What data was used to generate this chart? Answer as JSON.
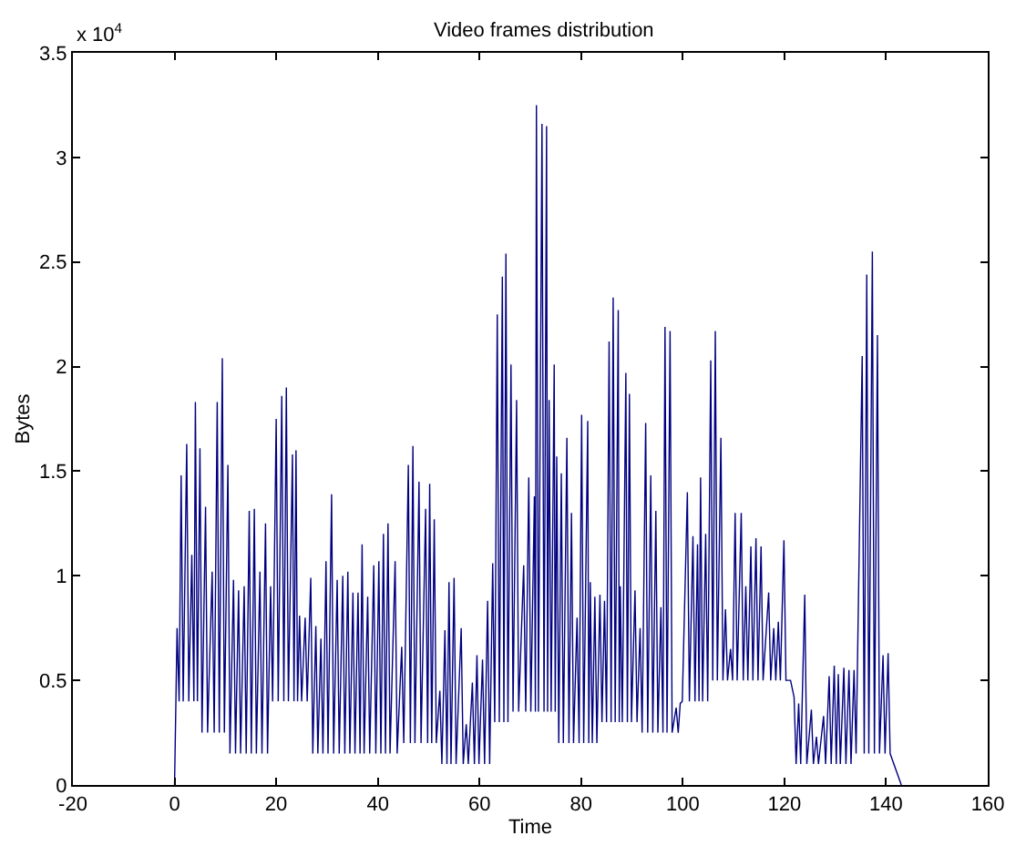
{
  "chart_data": {
    "type": "line",
    "title": "Video frames distribution",
    "xlabel": "Time",
    "ylabel": "Bytes",
    "annotations": [
      "x 10$^{4}$"
    ],
    "color": "#000080",
    "marker": "none",
    "line_style": "solid",
    "xlim": [
      -20,
      160
    ],
    "xticks": [
      -20,
      0,
      20,
      40,
      60,
      80,
      100,
      120,
      140,
      160
    ],
    "ylim": [
      0,
      3.5
    ],
    "yticks": [
      0,
      0.5,
      1,
      1.5,
      2,
      2.5,
      3,
      3.5
    ],
    "x": [
      0,
      0.5,
      0.9,
      1.3,
      1.7,
      2.4,
      2.8,
      3.4,
      3.8,
      4.1,
      4.5,
      5.0,
      5.4,
      6.1,
      6.5,
      7.4,
      7.8,
      8.4,
      8.8,
      9.4,
      9.8,
      10.5,
      10.9,
      11.6,
      12.0,
      12.6,
      13.0,
      13.7,
      14.1,
      14.7,
      15.1,
      15.7,
      16.1,
      16.8,
      17.2,
      17.9,
      18.3,
      18.9,
      19.3,
      20.0,
      20.4,
      21.1,
      21.5,
      22.0,
      22.4,
      23.2,
      23.5,
      23.9,
      24.2,
      24.6,
      25.0,
      25.7,
      26.1,
      26.8,
      27.2,
      27.8,
      28.2,
      28.8,
      29.2,
      29.8,
      30.2,
      30.9,
      31.3,
      32.0,
      32.4,
      33.1,
      33.5,
      34.1,
      34.5,
      35.1,
      35.5,
      36.1,
      36.5,
      36.9,
      37.3,
      38.0,
      38.4,
      39.2,
      39.6,
      40.2,
      40.6,
      41.1,
      41.5,
      42.0,
      42.4,
      43.4,
      43.8,
      44.7,
      45.1,
      46.0,
      46.4,
      46.9,
      47.3,
      48.1,
      48.5,
      49.4,
      49.8,
      50.2,
      50.6,
      51.1,
      51.5,
      52.2,
      52.6,
      53.2,
      53.6,
      54.0,
      54.4,
      55.0,
      55.4,
      56.4,
      56.8,
      57.4,
      57.8,
      58.6,
      59.0,
      59.5,
      59.9,
      60.6,
      61.0,
      61.6,
      62.0,
      62.6,
      63.0,
      63.5,
      63.9,
      64.5,
      64.8,
      65.2,
      65.6,
      66.2,
      66.6,
      67.3,
      67.7,
      68.7,
      69.1,
      69.7,
      70.1,
      70.8,
      71.0,
      71.2,
      71.6,
      72.3,
      72.7,
      73.2,
      73.4,
      73.7,
      74.1,
      74.7,
      74.9,
      75.2,
      75.6,
      76.1,
      76.5,
      77.2,
      77.6,
      78.1,
      78.5,
      79.2,
      79.6,
      80.1,
      80.5,
      81.3,
      81.5,
      81.8,
      82.2,
      82.7,
      83.1,
      83.7,
      84.1,
      84.6,
      85.0,
      85.5,
      85.9,
      86.3,
      86.7,
      87.3,
      87.5,
      87.7,
      88.1,
      88.8,
      89.1,
      89.5,
      89.9,
      90.6,
      91.0,
      91.6,
      92.0,
      92.7,
      93.1,
      93.7,
      94.1,
      94.7,
      95.1,
      95.7,
      96.1,
      96.5,
      96.9,
      97.5,
      97.9,
      98.7,
      99.1,
      99.5,
      99.9,
      100.9,
      101.3,
      102.0,
      102.4,
      102.9,
      103.2,
      103.5,
      103.9,
      104.5,
      104.9,
      105.5,
      105.9,
      106.4,
      106.8,
      107.5,
      107.9,
      108.4,
      108.8,
      109.4,
      109.8,
      110.3,
      110.7,
      111.5,
      111.9,
      112.4,
      112.8,
      113.4,
      113.8,
      114.4,
      114.8,
      115.4,
      115.8,
      116.9,
      117.3,
      117.9,
      118.3,
      118.8,
      119.2,
      119.9,
      120.3,
      120.8,
      121.2,
      121.9,
      122.3,
      122.8,
      123.2,
      124.0,
      124.4,
      125.3,
      125.7,
      126.3,
      126.7,
      127.7,
      128.1,
      128.8,
      129.2,
      129.8,
      130.2,
      130.6,
      131.0,
      131.7,
      132.1,
      132.7,
      133.1,
      133.7,
      134.1,
      135.3,
      135.7,
      136.2,
      136.6,
      137.3,
      137.7,
      138.3,
      138.7,
      139.4,
      139.8,
      140.4,
      140.8,
      143.0
    ],
    "values": [
      0,
      0.75,
      0.4,
      1.48,
      0.4,
      1.63,
      0.4,
      1.1,
      0.4,
      1.83,
      0.4,
      1.61,
      0.25,
      1.33,
      0.25,
      1.02,
      0.25,
      1.83,
      0.25,
      2.04,
      0.25,
      1.53,
      0.15,
      0.98,
      0.15,
      0.93,
      0.15,
      0.95,
      0.15,
      1.31,
      0.15,
      1.32,
      0.15,
      1.02,
      0.15,
      1.25,
      0.15,
      0.95,
      0.4,
      1.75,
      0.4,
      1.86,
      0.4,
      1.9,
      0.4,
      1.58,
      0.4,
      1.6,
      0.4,
      0.81,
      0.4,
      0.8,
      0.4,
      0.99,
      0.15,
      0.76,
      0.15,
      0.7,
      0.15,
      1.07,
      0.15,
      1.39,
      0.15,
      0.98,
      0.15,
      1.0,
      0.15,
      1.02,
      0.15,
      0.92,
      0.15,
      0.92,
      0.15,
      1.15,
      0.15,
      0.9,
      0.15,
      1.05,
      0.15,
      1.07,
      0.15,
      1.2,
      0.15,
      1.25,
      0.15,
      1.07,
      0.15,
      0.66,
      0.2,
      1.53,
      0.2,
      1.62,
      0.2,
      1.45,
      0.2,
      1.32,
      0.2,
      1.44,
      0.2,
      1.27,
      0.2,
      0.45,
      0.1,
      0.74,
      0.1,
      0.97,
      0.1,
      0.99,
      0.1,
      0.75,
      0.1,
      0.29,
      0.1,
      0.49,
      0.1,
      0.62,
      0.1,
      0.6,
      0.1,
      0.88,
      0.1,
      1.06,
      0.3,
      2.25,
      0.3,
      2.43,
      0.3,
      2.54,
      0.3,
      2.01,
      0.35,
      1.84,
      0.35,
      1.05,
      0.35,
      1.47,
      0.35,
      1.38,
      0.35,
      3.25,
      0.35,
      3.16,
      0.35,
      3.15,
      0.35,
      1.84,
      0.35,
      2.01,
      0.35,
      1.57,
      0.2,
      1.49,
      0.2,
      1.66,
      0.2,
      1.3,
      0.2,
      0.8,
      0.2,
      1.77,
      0.2,
      1.74,
      0.2,
      0.97,
      0.2,
      0.9,
      0.2,
      0.91,
      0.3,
      0.88,
      0.3,
      2.12,
      0.3,
      2.33,
      0.3,
      2.27,
      0.3,
      0.95,
      0.3,
      1.97,
      0.3,
      1.87,
      0.3,
      0.93,
      0.3,
      0.75,
      0.25,
      1.73,
      0.25,
      1.48,
      0.25,
      1.31,
      0.25,
      0.85,
      0.25,
      2.19,
      0.25,
      2.17,
      0.25,
      0.37,
      0.25,
      0.39,
      0.4,
      1.4,
      0.4,
      1.19,
      0.4,
      1.15,
      0.4,
      1.47,
      0.4,
      1.2,
      0.4,
      2.03,
      0.5,
      2.17,
      0.5,
      1.66,
      0.5,
      0.84,
      0.5,
      0.65,
      0.5,
      1.3,
      0.5,
      1.3,
      0.5,
      0.95,
      0.5,
      1.14,
      0.5,
      1.18,
      0.5,
      1.14,
      0.5,
      0.92,
      0.5,
      0.75,
      0.5,
      0.78,
      0.5,
      1.17,
      0.5,
      0.5,
      0.5,
      0.42,
      0.1,
      0.39,
      0.1,
      0.91,
      0.1,
      0.36,
      0.1,
      0.23,
      0.1,
      0.33,
      0.1,
      0.52,
      0.1,
      0.57,
      0.1,
      0.53,
      0.1,
      0.56,
      0.1,
      0.55,
      0.1,
      0.55,
      0.15,
      2.05,
      0.15,
      2.44,
      0.15,
      2.55,
      0.15,
      2.15,
      0.15,
      0.62,
      0.15,
      0.63,
      0.15,
      0
    ]
  }
}
